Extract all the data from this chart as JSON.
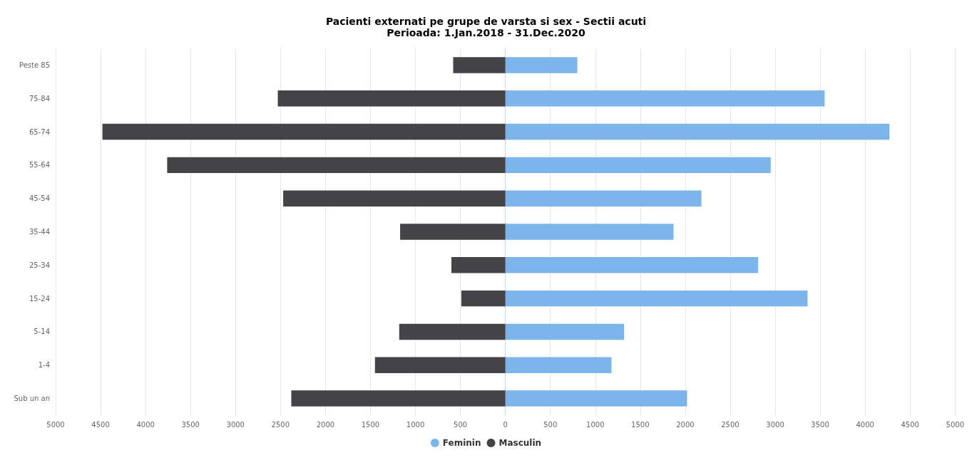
{
  "chart_data": {
    "type": "bar",
    "orientation": "horizontal",
    "stacked": true,
    "title": "Pacienti externati pe grupe de varsta si sex - Sectii acuti",
    "subtitle": "Perioada: 1.Jan.2018 - 31.Dec.2020",
    "categories": [
      "Peste 85",
      "75-84",
      "65-74",
      "55-64",
      "45-54",
      "35-44",
      "25-34",
      "15-24",
      "5-14",
      "1-4",
      "Sub un an"
    ],
    "series": [
      {
        "name": "Feminin",
        "color": "#7cb5ec",
        "values": [
          800,
          3550,
          4270,
          2950,
          2180,
          1870,
          2810,
          3360,
          1320,
          1180,
          2020
        ]
      },
      {
        "name": "Masculin",
        "color": "#434348",
        "values": [
          -580,
          -2530,
          -4480,
          -3760,
          -2470,
          -1170,
          -600,
          -490,
          -1180,
          -1450,
          -2380
        ]
      }
    ],
    "xlim": [
      -5000,
      5000
    ],
    "xticks": [
      {
        "value": -5000,
        "label": "5000"
      },
      {
        "value": -4500,
        "label": "4500"
      },
      {
        "value": -4000,
        "label": "4000"
      },
      {
        "value": -3500,
        "label": "3500"
      },
      {
        "value": -3000,
        "label": "3000"
      },
      {
        "value": -2500,
        "label": "2500"
      },
      {
        "value": -2000,
        "label": "2000"
      },
      {
        "value": -1500,
        "label": "1500"
      },
      {
        "value": -1000,
        "label": "1000"
      },
      {
        "value": -500,
        "label": "500"
      },
      0,
      500,
      1000,
      1500,
      2000,
      2500,
      3000,
      3500,
      4000,
      4500,
      5000
    ],
    "grid": "x",
    "legend": "bottom"
  }
}
